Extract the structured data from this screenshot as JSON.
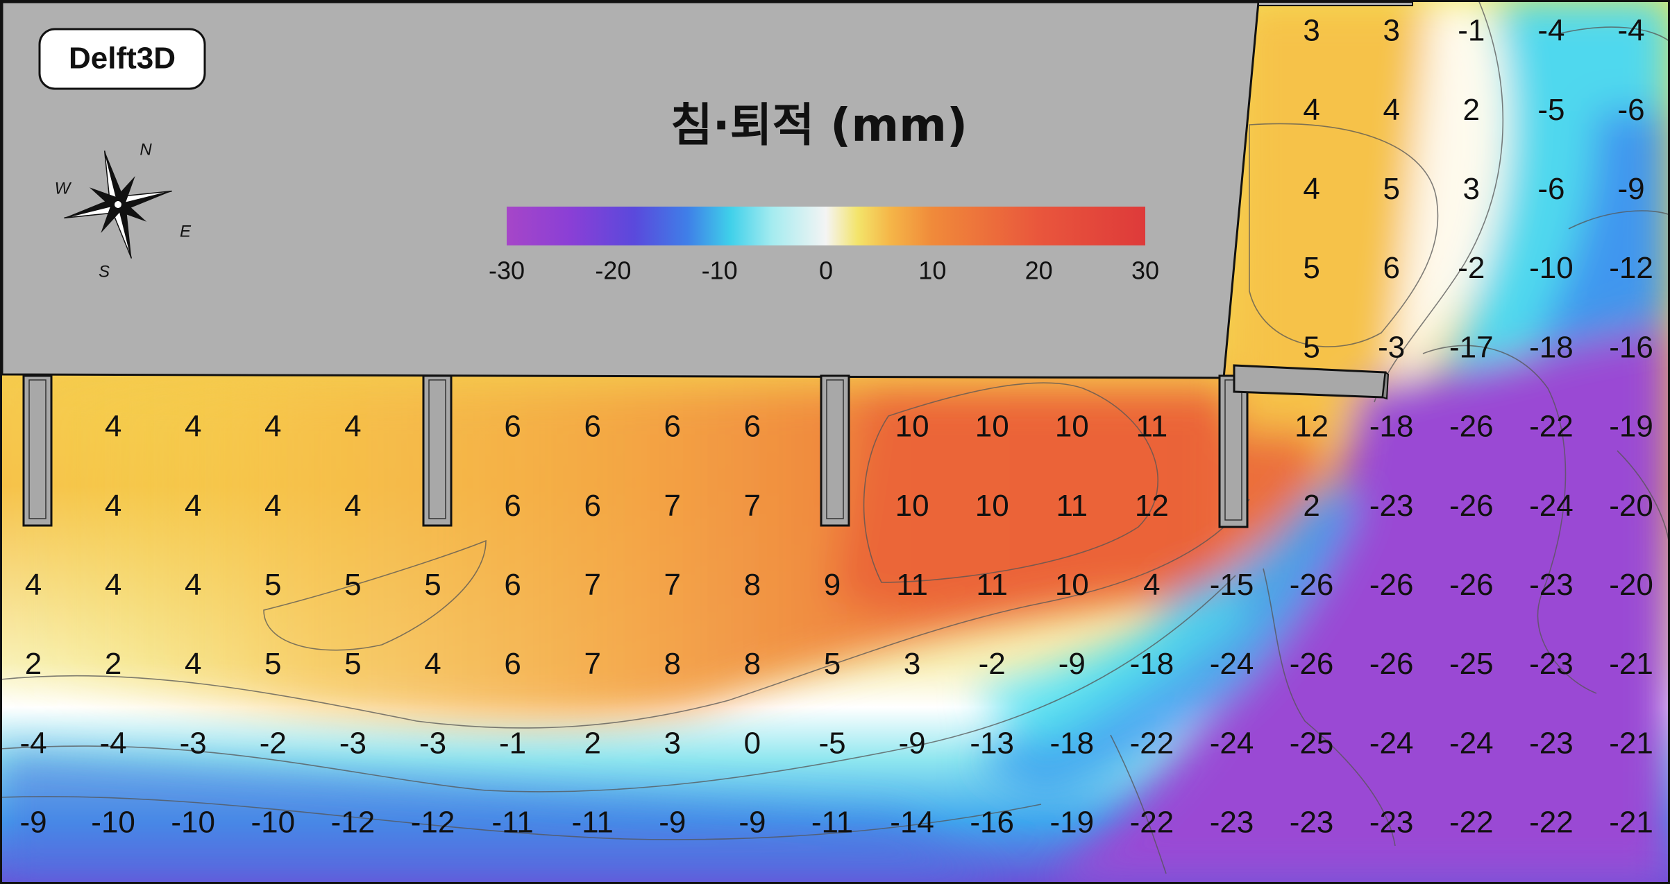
{
  "badge": {
    "label": "Delft3D"
  },
  "legend": {
    "title": "침·퇴적 (mm)",
    "ticks": [
      "-30",
      "-20",
      "-10",
      "0",
      "10",
      "20",
      "30"
    ],
    "range": [
      -30,
      30
    ],
    "stops": [
      {
        "v": -30,
        "c": "#a646c8"
      },
      {
        "v": -24,
        "c": "#8a3fd6"
      },
      {
        "v": -18,
        "c": "#5a49dc"
      },
      {
        "v": -13,
        "c": "#3f7fe8"
      },
      {
        "v": -9,
        "c": "#3fd0ea"
      },
      {
        "v": -5,
        "c": "#a6ecf0"
      },
      {
        "v": 0,
        "c": "#f4f4f4"
      },
      {
        "v": 3,
        "c": "#f3e46a"
      },
      {
        "v": 6,
        "c": "#f5b648"
      },
      {
        "v": 10,
        "c": "#f08a3a"
      },
      {
        "v": 20,
        "c": "#e9563c"
      },
      {
        "v": 30,
        "c": "#de3a3a"
      }
    ]
  },
  "compass": {
    "n": "N",
    "s": "S",
    "e": "E",
    "w": "W"
  },
  "chart_data": {
    "type": "heatmap",
    "title": "침·퇴적 (mm)",
    "colorbar_range": [
      -30,
      30
    ],
    "rows": [
      {
        "values": [
          {
            "c": 16,
            "v": "3"
          },
          {
            "c": 17,
            "v": "3"
          },
          {
            "c": 18,
            "v": "-1"
          },
          {
            "c": 19,
            "v": "-4"
          },
          {
            "c": 20,
            "v": "-4"
          }
        ]
      },
      {
        "values": [
          {
            "c": 16,
            "v": "4"
          },
          {
            "c": 17,
            "v": "4"
          },
          {
            "c": 18,
            "v": "2"
          },
          {
            "c": 19,
            "v": "-5"
          },
          {
            "c": 20,
            "v": "-6"
          }
        ]
      },
      {
        "values": [
          {
            "c": 16,
            "v": "4"
          },
          {
            "c": 17,
            "v": "5"
          },
          {
            "c": 18,
            "v": "3"
          },
          {
            "c": 19,
            "v": "-6"
          },
          {
            "c": 20,
            "v": "-9"
          }
        ]
      },
      {
        "values": [
          {
            "c": 16,
            "v": "5"
          },
          {
            "c": 17,
            "v": "6"
          },
          {
            "c": 18,
            "v": "-2"
          },
          {
            "c": 19,
            "v": "-10"
          },
          {
            "c": 20,
            "v": "-12"
          }
        ]
      },
      {
        "values": [
          {
            "c": 16,
            "v": "5"
          },
          {
            "c": 17,
            "v": "-3"
          },
          {
            "c": 18,
            "v": "-17"
          },
          {
            "c": 19,
            "v": "-18"
          },
          {
            "c": 20,
            "v": "-16"
          }
        ]
      },
      {
        "values": [
          {
            "c": 1,
            "v": "4"
          },
          {
            "c": 2,
            "v": "4"
          },
          {
            "c": 3,
            "v": "4"
          },
          {
            "c": 4,
            "v": "4"
          },
          {
            "c": 6,
            "v": "6"
          },
          {
            "c": 7,
            "v": "6"
          },
          {
            "c": 8,
            "v": "6"
          },
          {
            "c": 9,
            "v": "6"
          },
          {
            "c": 11,
            "v": "10"
          },
          {
            "c": 12,
            "v": "10"
          },
          {
            "c": 13,
            "v": "10"
          },
          {
            "c": 14,
            "v": "11"
          },
          {
            "c": 16,
            "v": "12"
          },
          {
            "c": 17,
            "v": "-18"
          },
          {
            "c": 18,
            "v": "-26"
          },
          {
            "c": 19,
            "v": "-22"
          },
          {
            "c": 20,
            "v": "-19"
          }
        ]
      },
      {
        "values": [
          {
            "c": 1,
            "v": "4"
          },
          {
            "c": 2,
            "v": "4"
          },
          {
            "c": 3,
            "v": "4"
          },
          {
            "c": 4,
            "v": "4"
          },
          {
            "c": 6,
            "v": "6"
          },
          {
            "c": 7,
            "v": "6"
          },
          {
            "c": 8,
            "v": "7"
          },
          {
            "c": 9,
            "v": "7"
          },
          {
            "c": 11,
            "v": "10"
          },
          {
            "c": 12,
            "v": "10"
          },
          {
            "c": 13,
            "v": "11"
          },
          {
            "c": 14,
            "v": "12"
          },
          {
            "c": 16,
            "v": "2"
          },
          {
            "c": 17,
            "v": "-23"
          },
          {
            "c": 18,
            "v": "-26"
          },
          {
            "c": 19,
            "v": "-24"
          },
          {
            "c": 20,
            "v": "-20"
          }
        ]
      },
      {
        "values": [
          {
            "c": 0,
            "v": "4"
          },
          {
            "c": 1,
            "v": "4"
          },
          {
            "c": 2,
            "v": "4"
          },
          {
            "c": 3,
            "v": "5"
          },
          {
            "c": 4,
            "v": "5"
          },
          {
            "c": 5,
            "v": "5"
          },
          {
            "c": 6,
            "v": "6"
          },
          {
            "c": 7,
            "v": "7"
          },
          {
            "c": 8,
            "v": "7"
          },
          {
            "c": 9,
            "v": "8"
          },
          {
            "c": 10,
            "v": "9"
          },
          {
            "c": 11,
            "v": "11"
          },
          {
            "c": 12,
            "v": "11"
          },
          {
            "c": 13,
            "v": "10"
          },
          {
            "c": 14,
            "v": "4"
          },
          {
            "c": 15,
            "v": "-15"
          },
          {
            "c": 16,
            "v": "-26"
          },
          {
            "c": 17,
            "v": "-26"
          },
          {
            "c": 18,
            "v": "-26"
          },
          {
            "c": 19,
            "v": "-23"
          },
          {
            "c": 20,
            "v": "-20"
          }
        ]
      },
      {
        "values": [
          {
            "c": 0,
            "v": "2"
          },
          {
            "c": 1,
            "v": "2"
          },
          {
            "c": 2,
            "v": "4"
          },
          {
            "c": 3,
            "v": "5"
          },
          {
            "c": 4,
            "v": "5"
          },
          {
            "c": 5,
            "v": "4"
          },
          {
            "c": 6,
            "v": "6"
          },
          {
            "c": 7,
            "v": "7"
          },
          {
            "c": 8,
            "v": "8"
          },
          {
            "c": 9,
            "v": "8"
          },
          {
            "c": 10,
            "v": "5"
          },
          {
            "c": 11,
            "v": "3"
          },
          {
            "c": 12,
            "v": "-2"
          },
          {
            "c": 13,
            "v": "-9"
          },
          {
            "c": 14,
            "v": "-18"
          },
          {
            "c": 15,
            "v": "-24"
          },
          {
            "c": 16,
            "v": "-26"
          },
          {
            "c": 17,
            "v": "-26"
          },
          {
            "c": 18,
            "v": "-25"
          },
          {
            "c": 19,
            "v": "-23"
          },
          {
            "c": 20,
            "v": "-21"
          }
        ]
      },
      {
        "values": [
          {
            "c": 0,
            "v": "-4"
          },
          {
            "c": 1,
            "v": "-4"
          },
          {
            "c": 2,
            "v": "-3"
          },
          {
            "c": 3,
            "v": "-2"
          },
          {
            "c": 4,
            "v": "-3"
          },
          {
            "c": 5,
            "v": "-3"
          },
          {
            "c": 6,
            "v": "-1"
          },
          {
            "c": 7,
            "v": "2"
          },
          {
            "c": 8,
            "v": "3"
          },
          {
            "c": 9,
            "v": "0"
          },
          {
            "c": 10,
            "v": "-5"
          },
          {
            "c": 11,
            "v": "-9"
          },
          {
            "c": 12,
            "v": "-13"
          },
          {
            "c": 13,
            "v": "-18"
          },
          {
            "c": 14,
            "v": "-22"
          },
          {
            "c": 15,
            "v": "-24"
          },
          {
            "c": 16,
            "v": "-25"
          },
          {
            "c": 17,
            "v": "-24"
          },
          {
            "c": 18,
            "v": "-24"
          },
          {
            "c": 19,
            "v": "-23"
          },
          {
            "c": 20,
            "v": "-21"
          }
        ]
      },
      {
        "values": [
          {
            "c": 0,
            "v": "-9"
          },
          {
            "c": 1,
            "v": "-10"
          },
          {
            "c": 2,
            "v": "-10"
          },
          {
            "c": 3,
            "v": "-10"
          },
          {
            "c": 4,
            "v": "-12"
          },
          {
            "c": 5,
            "v": "-12"
          },
          {
            "c": 6,
            "v": "-11"
          },
          {
            "c": 7,
            "v": "-11"
          },
          {
            "c": 8,
            "v": "-9"
          },
          {
            "c": 9,
            "v": "-9"
          },
          {
            "c": 10,
            "v": "-11"
          },
          {
            "c": 11,
            "v": "-14"
          },
          {
            "c": 12,
            "v": "-16"
          },
          {
            "c": 13,
            "v": "-19"
          },
          {
            "c": 14,
            "v": "-22"
          },
          {
            "c": 15,
            "v": "-23"
          },
          {
            "c": 16,
            "v": "-23"
          },
          {
            "c": 17,
            "v": "-23"
          },
          {
            "c": 18,
            "v": "-22"
          },
          {
            "c": 19,
            "v": "-22"
          },
          {
            "c": 20,
            "v": "-21"
          }
        ]
      }
    ]
  }
}
